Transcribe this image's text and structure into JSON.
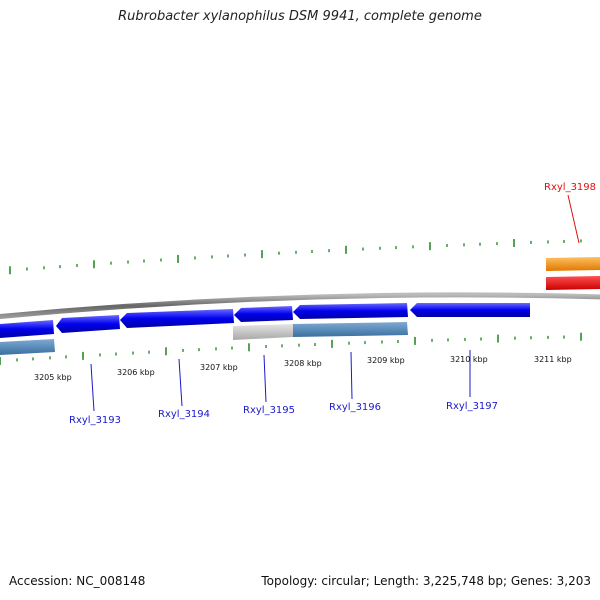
{
  "title": "Rubrobacter xylanophilus DSM 9941, complete genome",
  "accession": "Accession: NC_008148",
  "summary": "Topology: circular; Length: 3,225,748 bp; Genes: 3,203",
  "kbp_labels": [
    "3205 kbp",
    "3206 kbp",
    "3207 kbp",
    "3208 kbp",
    "3209 kbp",
    "3210 kbp",
    "3211 kbp"
  ],
  "genes": [
    {
      "label": "Rxyl_3193",
      "color": "#1a1acc"
    },
    {
      "label": "Rxyl_3194",
      "color": "#1a1acc"
    },
    {
      "label": "Rxyl_3195",
      "color": "#1a1acc"
    },
    {
      "label": "Rxyl_3196",
      "color": "#1a1acc"
    },
    {
      "label": "Rxyl_3197",
      "color": "#1a1acc"
    },
    {
      "label": "Rxyl_3198",
      "color": "#e01010"
    }
  ],
  "colors": {
    "backbone": "#777777",
    "cds": "#0000ff",
    "orange_feature": "#f59a10",
    "red_feature": "#ff0000",
    "steelblue_feature": "#4f86b8",
    "grey_feature": "#c8c8c8",
    "ticks": "#2a8a2a"
  }
}
